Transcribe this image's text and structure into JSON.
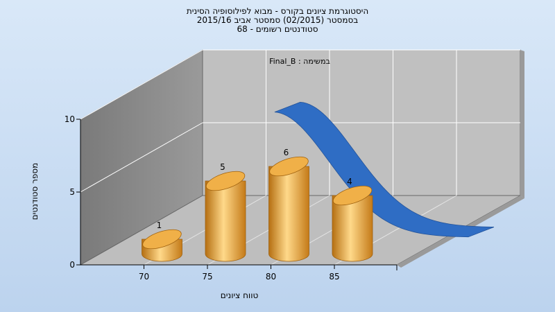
{
  "chart_data": {
    "type": "bar",
    "title_lines": [
      "היסטוגרמת ציונים בקורס - מבוא לפילוסופיה הסינית",
      "בסמסטר  (02/2015)  סמסטר אביב 2015/16",
      "סטודנטים רשומים - 68"
    ],
    "annotation": "במשימה : Final_B",
    "xlabel": "טווח ציונים",
    "ylabel": "מספר סטודנטים",
    "categories": [
      "70",
      "75",
      "80",
      "85"
    ],
    "bar_x": [
      70,
      75,
      80,
      85
    ],
    "values": [
      1,
      5,
      6,
      4
    ],
    "data_labels": [
      "1",
      "5",
      "6",
      "4"
    ],
    "x_ticks": [
      "70",
      "75",
      "80",
      "85"
    ],
    "y_ticks": [
      "0",
      "5",
      "10"
    ],
    "ylim": [
      0,
      10
    ],
    "xlim": [
      65,
      90
    ],
    "grid": true,
    "curve": {
      "type": "normal-fit-ribbon"
    },
    "colors": {
      "bar": "#e8a23a",
      "bar_highlight": "#ffd98a",
      "bar_shadow": "#b06e14",
      "curve": "#2f6dc4",
      "back_wall": "#c2c2c2",
      "side_wall": "#8a8a8a",
      "floor": "#bcbcbc",
      "grid": "#ffffff"
    }
  }
}
